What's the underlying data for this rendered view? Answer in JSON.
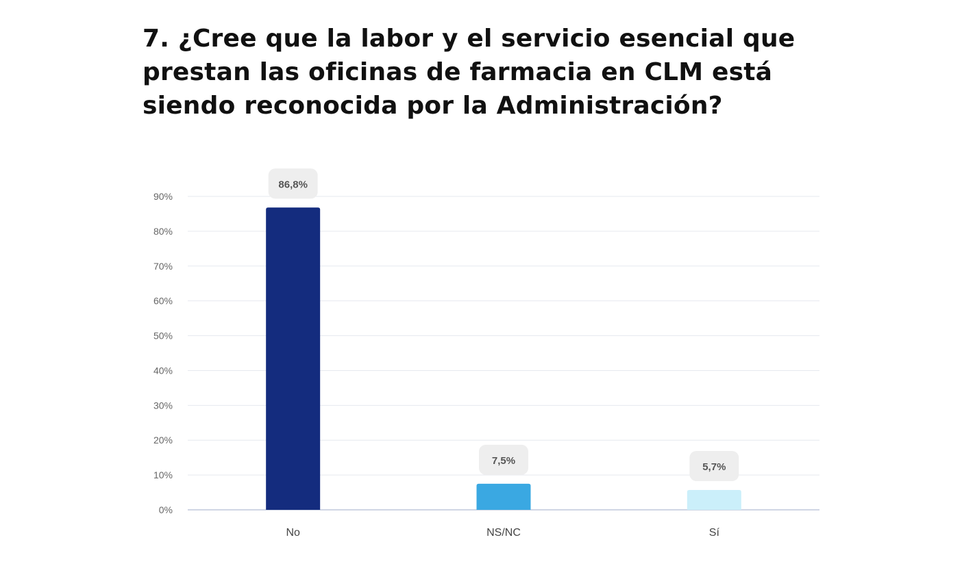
{
  "chart_data": {
    "type": "bar",
    "title": "7. ¿Cree que la labor y el servicio esencial que prestan las oficinas de farmacia en CLM está siendo reconocida por la Administración?",
    "title_lines": [
      "7. ¿Cree que la labor y el servicio esencial que",
      "prestan las oficinas de farmacia en CLM está",
      "siendo reconocida por la Administración?"
    ],
    "categories": [
      "No",
      "NS/NC",
      "Sí"
    ],
    "values": [
      86.8,
      7.5,
      5.7
    ],
    "data_labels": [
      "86,8%",
      "7,5%",
      "5,7%"
    ],
    "colors": [
      "#142c7e",
      "#3aa8e2",
      "#cbeffa"
    ],
    "ylim": [
      0,
      90
    ],
    "yticks": [
      0,
      10,
      20,
      30,
      40,
      50,
      60,
      70,
      80,
      90
    ],
    "ytick_labels": [
      "0%",
      "10%",
      "20%",
      "30%",
      "40%",
      "50%",
      "60%",
      "70%",
      "80%",
      "90%"
    ],
    "xlabel": "",
    "ylabel": "",
    "grid": true,
    "legend": "none"
  }
}
